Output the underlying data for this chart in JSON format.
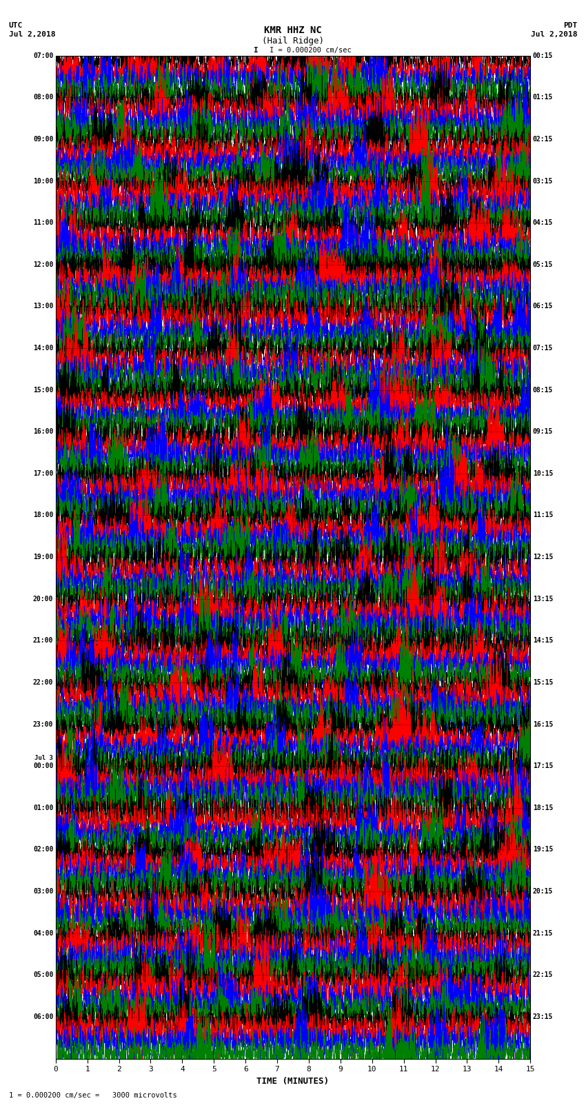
{
  "title_line1": "KMR HHZ NC",
  "title_line2": "(Hail Ridge)",
  "scale_text": "I = 0.000200 cm/sec",
  "scale_label": "1 = 0.000200 cm/sec =   3000 microvolts",
  "utc_label": "UTC",
  "utc_date": "Jul 2,2018",
  "pdt_label": "PDT",
  "pdt_date": "Jul 2,2018",
  "xlabel": "TIME (MINUTES)",
  "left_times": [
    "07:00",
    "08:00",
    "09:00",
    "10:00",
    "11:00",
    "12:00",
    "13:00",
    "14:00",
    "15:00",
    "16:00",
    "17:00",
    "18:00",
    "19:00",
    "20:00",
    "21:00",
    "22:00",
    "23:00",
    "Jul 3\n00:00",
    "01:00",
    "02:00",
    "03:00",
    "04:00",
    "05:00",
    "06:00"
  ],
  "right_times": [
    "00:15",
    "01:15",
    "02:15",
    "03:15",
    "04:15",
    "05:15",
    "06:15",
    "07:15",
    "08:15",
    "09:15",
    "10:15",
    "11:15",
    "12:15",
    "13:15",
    "14:15",
    "15:15",
    "16:15",
    "17:15",
    "18:15",
    "19:15",
    "20:15",
    "21:15",
    "22:15",
    "23:15"
  ],
  "n_rows": 24,
  "traces_per_row": 4,
  "trace_colors": [
    "black",
    "red",
    "blue",
    "green"
  ],
  "fig_width": 8.5,
  "fig_height": 16.13,
  "dpi": 100,
  "x_ticks": [
    0,
    1,
    2,
    3,
    4,
    5,
    6,
    7,
    8,
    9,
    10,
    11,
    12,
    13,
    14,
    15
  ],
  "xlim": [
    0,
    15
  ],
  "background_color": "white",
  "noise_seed": 42,
  "n_points": 9000,
  "amplitude": 0.55
}
